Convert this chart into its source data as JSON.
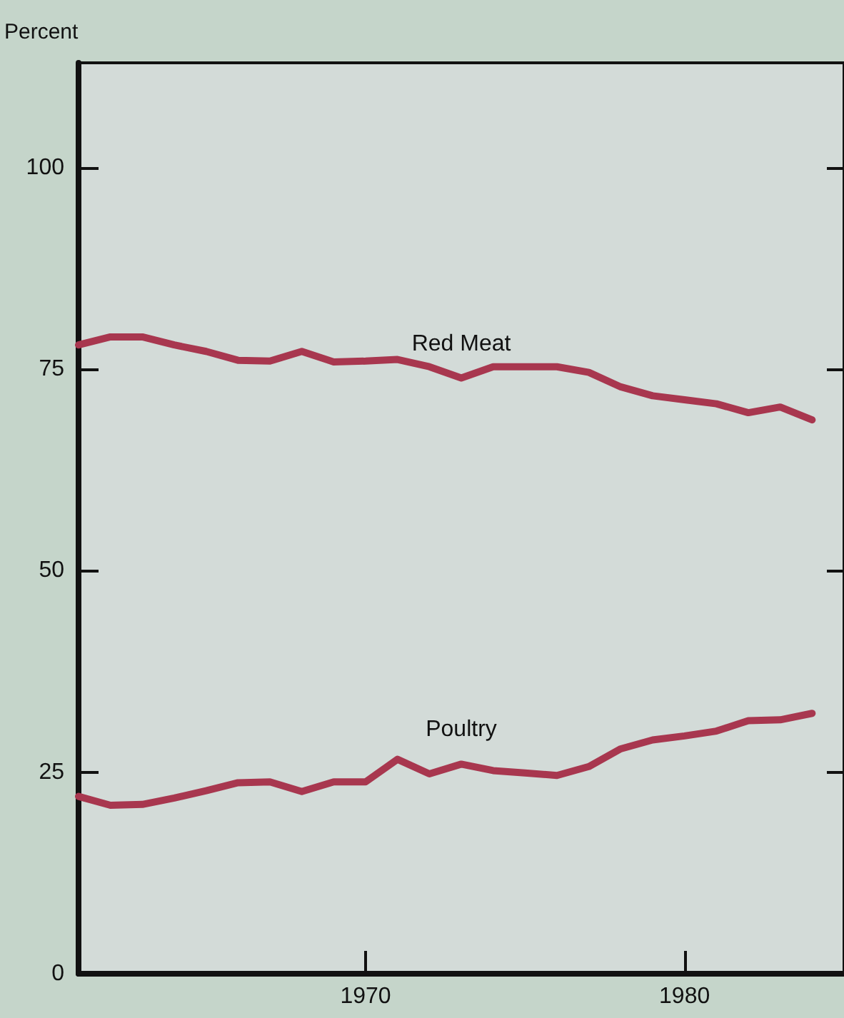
{
  "chart_data": {
    "type": "line",
    "ylabel": "Percent",
    "x": [
      1961,
      1962,
      1963,
      1964,
      1965,
      1966,
      1967,
      1968,
      1969,
      1970,
      1971,
      1972,
      1973,
      1974,
      1975,
      1976,
      1977,
      1978,
      1979,
      1980,
      1981,
      1982,
      1983,
      1984
    ],
    "series": [
      {
        "name": "Red Meat",
        "color": "#a8374f",
        "values": [
          78,
          79,
          79,
          78,
          77.2,
          76.1,
          76,
          77.2,
          75.9,
          76,
          76.2,
          75.3,
          73.9,
          75.3,
          75.3,
          75.3,
          74.6,
          72.8,
          71.7,
          71.2,
          70.7,
          69.6,
          70.3,
          68.7
        ]
      },
      {
        "name": "Poultry",
        "color": "#a8374f",
        "values": [
          22,
          20.9,
          21,
          21.8,
          22.7,
          23.7,
          23.8,
          22.6,
          23.8,
          23.8,
          26.6,
          24.8,
          26,
          25.2,
          24.9,
          24.6,
          25.7,
          27.9,
          29,
          29.5,
          30.1,
          31.4,
          31.5,
          32.3
        ]
      }
    ],
    "xlim": [
      1961,
      1985
    ],
    "xticks": [
      1970,
      1980
    ],
    "ylim": [
      0,
      113
    ],
    "yticks": [
      0,
      25,
      50,
      75,
      100
    ],
    "grid": false,
    "legend": false,
    "marker": "none",
    "line_style": "solid"
  }
}
